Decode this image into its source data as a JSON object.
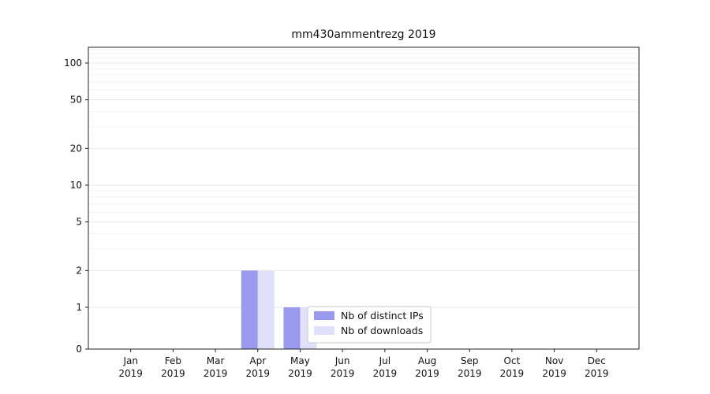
{
  "title": "mm430ammentrezg 2019",
  "chart_data": {
    "type": "bar",
    "title": "mm430ammentrezg 2019",
    "categories": [
      "Jan",
      "Feb",
      "Mar",
      "Apr",
      "May",
      "Jun",
      "Jul",
      "Aug",
      "Sep",
      "Oct",
      "Nov",
      "Dec"
    ],
    "year_label": "2019",
    "series": [
      {
        "name": "Nb of distinct IPs",
        "color": "#9999ee",
        "values": [
          0,
          0,
          0,
          2,
          1,
          0,
          0,
          0,
          0,
          0,
          0,
          0
        ]
      },
      {
        "name": "Nb of downloads",
        "color": "#e1e1fb",
        "values": [
          0,
          0,
          0,
          2,
          1,
          0,
          0,
          0,
          0,
          0,
          0,
          0
        ]
      }
    ],
    "yscale": "symlog",
    "yticks": [
      0,
      1,
      2,
      5,
      10,
      20,
      50,
      100
    ],
    "ylim": [
      0,
      135
    ],
    "grid": true,
    "legend": {
      "position": "inside-bottom-center",
      "entries": [
        "Nb of distinct IPs",
        "Nb of downloads"
      ]
    },
    "colors": {
      "axis": "#222222",
      "grid_major": "#e8e8e8",
      "grid_minor": "#f3f3f3",
      "tick_label": "#111111",
      "legend_border": "#c8c8c8"
    }
  }
}
